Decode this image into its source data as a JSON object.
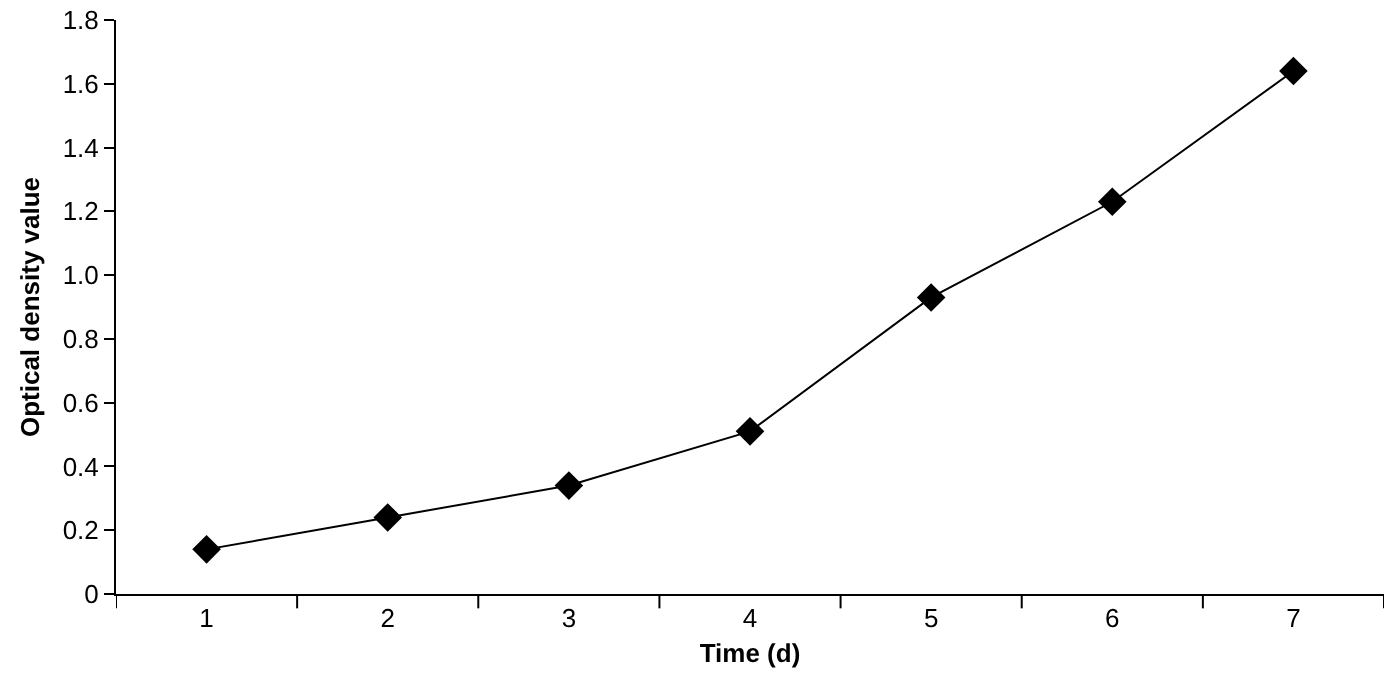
{
  "chart_data": {
    "type": "line",
    "xlabel": "Time (d)",
    "ylabel": "Optical density value",
    "categories": [
      "1",
      "2",
      "3",
      "4",
      "5",
      "6",
      "7"
    ],
    "series": [
      {
        "color": "#000000",
        "values": [
          0.14,
          0.24,
          0.34,
          0.51,
          0.93,
          1.23,
          1.64
        ]
      }
    ],
    "ylim": [
      0,
      1.8
    ],
    "yticks": [
      {
        "value": 0,
        "label": "0"
      },
      0.2,
      0.4,
      0.6,
      0.8,
      {
        "value": 1,
        "label": "1.0"
      },
      1.2,
      1.4,
      1.6,
      1.8
    ],
    "grid": false,
    "marker": "diamond",
    "line_style": "solid"
  }
}
